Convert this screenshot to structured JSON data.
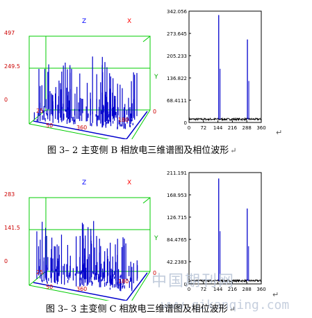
{
  "captions": [
    {
      "text": "图 3– 2 主变侧 B 相放电三维谱图及相位波形"
    },
    {
      "text": "图 3– 3  主变侧 C 相放电三维谱图及相位波形"
    }
  ],
  "para_mark": "↵",
  "watermark": {
    "text": "中国期刊网",
    "url": "www.qikanqing.com"
  },
  "chart_data": [
    {
      "type": "bar3d",
      "axis_letters": {
        "z": "Z",
        "x": "X",
        "y": "Y"
      },
      "z_ticks": [
        "497",
        "249.5",
        "0"
      ],
      "y_ticks": [
        "25",
        "50"
      ],
      "x_ticks": [
        "360",
        "180",
        "0"
      ],
      "colors": {
        "frame": "#00cc00",
        "bars": "#0000cc",
        "z_letter": "#0000ff",
        "x_letter": "#ff0000",
        "y_letter": "#00aa00",
        "ticks": "#cc0000"
      }
    },
    {
      "type": "line",
      "yticks": [
        "342.056",
        "273.645",
        "205.233",
        "136.822",
        "68.4111",
        "0"
      ],
      "xticks": [
        "0",
        "72",
        "144",
        "216",
        "288",
        "360"
      ],
      "xlim": [
        0,
        360
      ],
      "ylim": [
        0,
        342.056
      ],
      "baseline": 10,
      "peaks": [
        {
          "x": 148,
          "y": 330
        },
        {
          "x": 291,
          "y": 255
        }
      ],
      "colors": {
        "pulse": "#0000cc",
        "base": "#000000"
      }
    },
    {
      "type": "bar3d",
      "axis_letters": {
        "z": "Z",
        "x": "X",
        "y": "Y"
      },
      "z_ticks": [
        "283",
        "141.5",
        "0"
      ],
      "y_ticks": [
        "25",
        "50"
      ],
      "x_ticks": [
        "360",
        "180",
        "0"
      ],
      "colors": {
        "frame": "#00cc00",
        "bars": "#0000cc",
        "z_letter": "#0000ff",
        "x_letter": "#ff0000",
        "y_letter": "#00aa00",
        "ticks": "#cc0000"
      }
    },
    {
      "type": "line",
      "yticks": [
        "211.191",
        "168.953",
        "126.715",
        "84.4765",
        "42.2383",
        "0"
      ],
      "xticks": [
        "0",
        "72",
        "144",
        "216",
        "288",
        "360"
      ],
      "xlim": [
        0,
        360
      ],
      "ylim": [
        0,
        211.191
      ],
      "baseline": 6,
      "peaks": [
        {
          "x": 148,
          "y": 200
        },
        {
          "x": 290,
          "y": 143
        }
      ],
      "colors": {
        "pulse": "#0000cc",
        "base": "#000000"
      }
    }
  ]
}
